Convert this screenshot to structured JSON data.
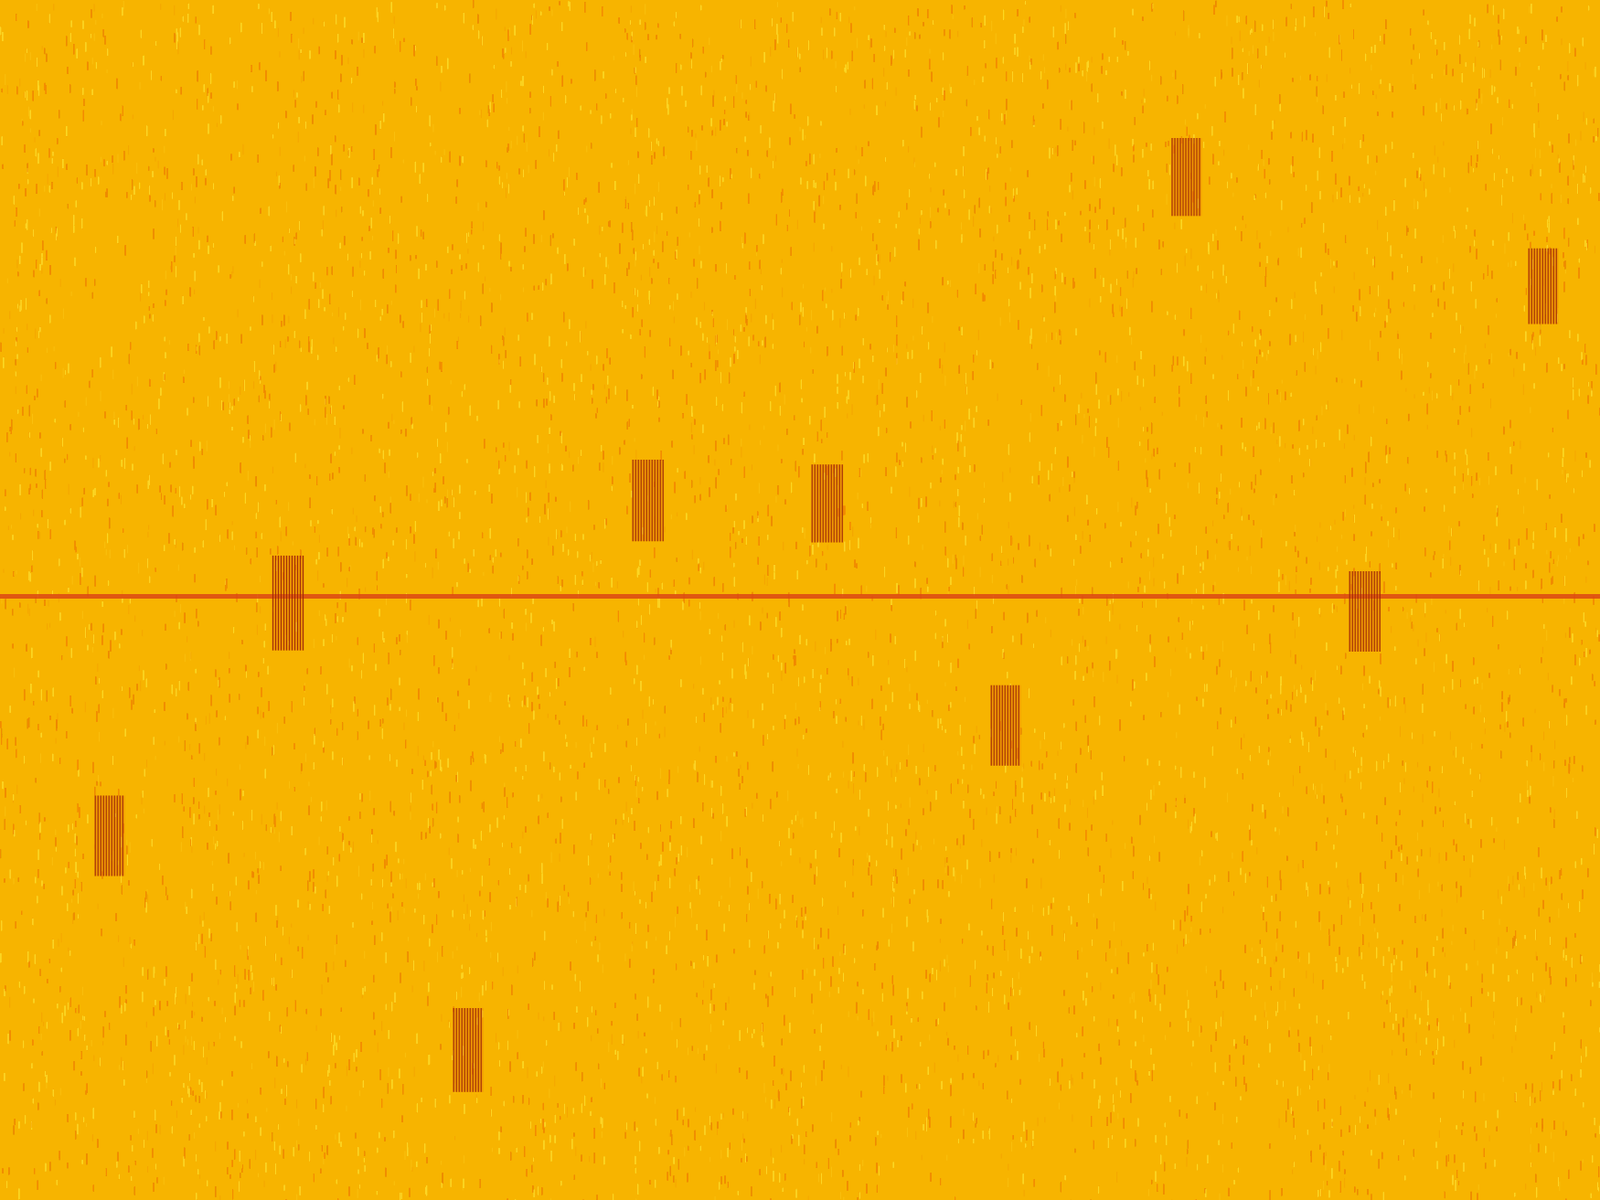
{
  "chart_data": {
    "type": "spectrogram",
    "xlim": [
      0,
      100
    ],
    "ylim": [
      0,
      100
    ],
    "tick_labels": false,
    "grid": false,
    "color": "#f7b400",
    "carrier_y": 49.7,
    "bursts": [
      {
        "x": [
          73.2,
          75.1
        ],
        "y": [
          11.5,
          18.0
        ]
      },
      {
        "x": [
          95.5,
          97.4
        ],
        "y": [
          20.7,
          27.0
        ]
      },
      {
        "x": [
          39.5,
          41.5
        ],
        "y": [
          38.3,
          45.1
        ]
      },
      {
        "x": [
          50.7,
          52.7
        ],
        "y": [
          38.7,
          45.2
        ]
      },
      {
        "x": [
          17.0,
          19.0
        ],
        "y": [
          46.3,
          54.2
        ]
      },
      {
        "x": [
          84.3,
          86.3
        ],
        "y": [
          47.6,
          54.3
        ]
      },
      {
        "x": [
          61.9,
          63.8
        ],
        "y": [
          57.1,
          63.8
        ]
      },
      {
        "x": [
          5.9,
          7.8
        ],
        "y": [
          66.3,
          73.0
        ]
      },
      {
        "x": [
          28.3,
          30.2
        ],
        "y": [
          84.0,
          91.0
        ]
      }
    ]
  }
}
